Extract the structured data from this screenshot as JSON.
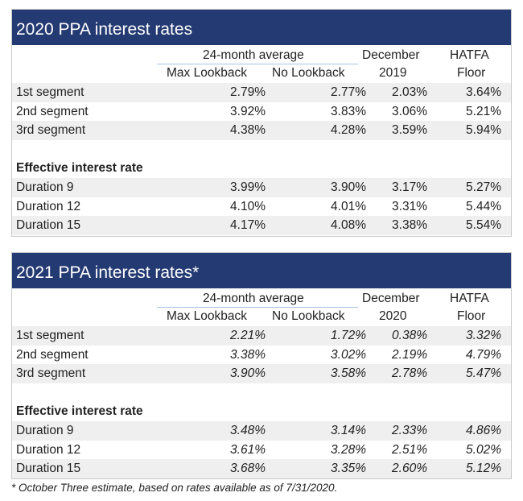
{
  "tables": [
    {
      "title": "2020 PPA interest rates",
      "group_header": "24-month average",
      "col_max_lookback": "Max Lookback",
      "col_no_lookback": "No Lookback",
      "col_prev_top": "December",
      "col_prev_bottom": "2019",
      "col_hatfa_top": "HATFA",
      "col_hatfa_bottom": "Floor",
      "segments": [
        {
          "label": "1st segment",
          "max": "2.79%",
          "no": "2.77%",
          "dec": "2.03%",
          "hatfa": "3.64%"
        },
        {
          "label": "2nd segment",
          "max": "3.92%",
          "no": "3.83%",
          "dec": "3.06%",
          "hatfa": "5.21%"
        },
        {
          "label": "3rd segment",
          "max": "4.38%",
          "no": "4.28%",
          "dec": "3.59%",
          "hatfa": "5.94%"
        }
      ],
      "effective_label": "Effective interest rate",
      "durations": [
        {
          "label": "Duration 9",
          "max": "3.99%",
          "no": "3.90%",
          "dec": "3.17%",
          "hatfa": "5.27%"
        },
        {
          "label": "Duration 12",
          "max": "4.10%",
          "no": "4.01%",
          "dec": "3.31%",
          "hatfa": "5.44%"
        },
        {
          "label": "Duration 15",
          "max": "4.17%",
          "no": "4.08%",
          "dec": "3.38%",
          "hatfa": "5.54%"
        }
      ]
    },
    {
      "title": "2021 PPA interest rates*",
      "group_header": "24-month average",
      "col_max_lookback": "Max Lookback",
      "col_no_lookback": "No Lookback",
      "col_prev_top": "December",
      "col_prev_bottom": "2020",
      "col_hatfa_top": "HATFA",
      "col_hatfa_bottom": "Floor",
      "segments": [
        {
          "label": "1st segment",
          "max": "2.21%",
          "no": "1.72%",
          "dec": "0.38%",
          "hatfa": "3.32%"
        },
        {
          "label": "2nd segment",
          "max": "3.38%",
          "no": "3.02%",
          "dec": "2.19%",
          "hatfa": "4.79%"
        },
        {
          "label": "3rd segment",
          "max": "3.90%",
          "no": "3.58%",
          "dec": "2.78%",
          "hatfa": "5.47%"
        }
      ],
      "effective_label": "Effective interest rate",
      "durations": [
        {
          "label": "Duration 9",
          "max": "3.48%",
          "no": "3.14%",
          "dec": "2.33%",
          "hatfa": "4.86%"
        },
        {
          "label": "Duration 12",
          "max": "3.61%",
          "no": "3.28%",
          "dec": "2.51%",
          "hatfa": "5.02%"
        },
        {
          "label": "Duration 15",
          "max": "3.68%",
          "no": "3.35%",
          "dec": "2.60%",
          "hatfa": "5.12%"
        }
      ]
    }
  ],
  "footnote": "* October Three estimate, based on rates available as of 7/31/2020."
}
